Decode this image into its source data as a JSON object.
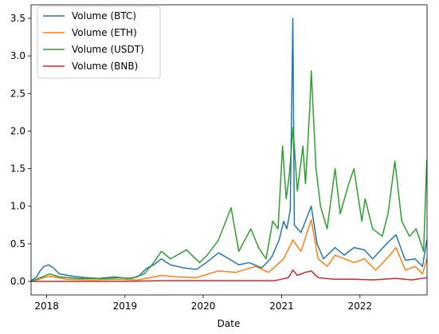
{
  "chart_data": {
    "type": "line",
    "title": "",
    "xlabel": "Date",
    "ylabel": "",
    "xlim": [
      "2017-10-20",
      "2022-11-10"
    ],
    "ylim": [
      -0.18,
      3.68
    ],
    "x_ticks": [
      "2018",
      "2019",
      "2020",
      "2021",
      "2022"
    ],
    "y_ticks": [
      "0.0",
      "0.5",
      "1.0",
      "1.5",
      "2.0",
      "2.5",
      "3.0",
      "3.5"
    ],
    "legend_position": "top-left",
    "grid": false,
    "series": [
      {
        "name": "Volume (BTC)",
        "color": "#1f77b4",
        "points": [
          [
            "2017-10-20",
            0.01
          ],
          [
            "2017-11-15",
            0.06
          ],
          [
            "2017-12-01",
            0.14
          ],
          [
            "2017-12-20",
            0.2
          ],
          [
            "2018-01-10",
            0.22
          ],
          [
            "2018-02-01",
            0.18
          ],
          [
            "2018-03-01",
            0.1
          ],
          [
            "2018-05-01",
            0.07
          ],
          [
            "2018-07-01",
            0.05
          ],
          [
            "2018-09-01",
            0.04
          ],
          [
            "2018-11-15",
            0.06
          ],
          [
            "2019-01-15",
            0.04
          ],
          [
            "2019-03-01",
            0.06
          ],
          [
            "2019-04-15",
            0.18
          ],
          [
            "2019-05-15",
            0.22
          ],
          [
            "2019-06-20",
            0.3
          ],
          [
            "2019-08-01",
            0.22
          ],
          [
            "2019-10-01",
            0.18
          ],
          [
            "2019-12-01",
            0.16
          ],
          [
            "2020-01-15",
            0.25
          ],
          [
            "2020-03-12",
            0.38
          ],
          [
            "2020-05-01",
            0.3
          ],
          [
            "2020-06-15",
            0.22
          ],
          [
            "2020-08-01",
            0.25
          ],
          [
            "2020-10-01",
            0.18
          ],
          [
            "2020-11-15",
            0.32
          ],
          [
            "2020-12-20",
            0.55
          ],
          [
            "2021-01-10",
            0.8
          ],
          [
            "2021-01-25",
            0.7
          ],
          [
            "2021-02-10",
            0.95
          ],
          [
            "2021-02-22",
            3.5
          ],
          [
            "2021-03-01",
            0.75
          ],
          [
            "2021-04-01",
            0.65
          ],
          [
            "2021-05-19",
            1.0
          ],
          [
            "2021-06-15",
            0.5
          ],
          [
            "2021-07-15",
            0.3
          ],
          [
            "2021-09-07",
            0.45
          ],
          [
            "2021-10-20",
            0.35
          ],
          [
            "2021-12-04",
            0.45
          ],
          [
            "2022-01-22",
            0.42
          ],
          [
            "2022-03-01",
            0.3
          ],
          [
            "2022-05-12",
            0.52
          ],
          [
            "2022-06-18",
            0.62
          ],
          [
            "2022-08-01",
            0.28
          ],
          [
            "2022-09-15",
            0.3
          ],
          [
            "2022-10-20",
            0.2
          ],
          [
            "2022-11-09",
            0.55
          ]
        ]
      },
      {
        "name": "Volume (ETH)",
        "color": "#ff7f0e",
        "points": [
          [
            "2017-10-20",
            0.0
          ],
          [
            "2017-12-20",
            0.05
          ],
          [
            "2018-01-15",
            0.07
          ],
          [
            "2018-04-01",
            0.03
          ],
          [
            "2018-08-01",
            0.02
          ],
          [
            "2018-11-15",
            0.03
          ],
          [
            "2019-03-01",
            0.02
          ],
          [
            "2019-06-20",
            0.08
          ],
          [
            "2019-09-01",
            0.06
          ],
          [
            "2019-12-01",
            0.05
          ],
          [
            "2020-03-12",
            0.14
          ],
          [
            "2020-06-01",
            0.12
          ],
          [
            "2020-09-01",
            0.2
          ],
          [
            "2020-11-01",
            0.12
          ],
          [
            "2021-01-10",
            0.3
          ],
          [
            "2021-02-22",
            0.55
          ],
          [
            "2021-04-01",
            0.4
          ],
          [
            "2021-05-19",
            0.82
          ],
          [
            "2021-06-20",
            0.3
          ],
          [
            "2021-08-01",
            0.2
          ],
          [
            "2021-09-07",
            0.35
          ],
          [
            "2021-12-04",
            0.25
          ],
          [
            "2022-01-22",
            0.3
          ],
          [
            "2022-03-15",
            0.15
          ],
          [
            "2022-05-12",
            0.32
          ],
          [
            "2022-06-18",
            0.45
          ],
          [
            "2022-08-01",
            0.15
          ],
          [
            "2022-09-15",
            0.2
          ],
          [
            "2022-10-20",
            0.1
          ],
          [
            "2022-11-09",
            0.3
          ]
        ]
      },
      {
        "name": "Volume (USDT)",
        "color": "#2ca02c",
        "points": [
          [
            "2017-10-20",
            0.0
          ],
          [
            "2017-12-20",
            0.07
          ],
          [
            "2018-01-15",
            0.1
          ],
          [
            "2018-03-01",
            0.06
          ],
          [
            "2018-06-01",
            0.04
          ],
          [
            "2018-10-01",
            0.04
          ],
          [
            "2018-12-01",
            0.05
          ],
          [
            "2019-02-01",
            0.04
          ],
          [
            "2019-04-01",
            0.1
          ],
          [
            "2019-05-15",
            0.25
          ],
          [
            "2019-06-20",
            0.4
          ],
          [
            "2019-08-01",
            0.3
          ],
          [
            "2019-10-15",
            0.42
          ],
          [
            "2019-12-15",
            0.25
          ],
          [
            "2020-01-20",
            0.35
          ],
          [
            "2020-03-12",
            0.55
          ],
          [
            "2020-05-10",
            0.98
          ],
          [
            "2020-06-15",
            0.4
          ],
          [
            "2020-08-10",
            0.7
          ],
          [
            "2020-09-15",
            0.45
          ],
          [
            "2020-10-20",
            0.3
          ],
          [
            "2020-11-20",
            0.8
          ],
          [
            "2020-12-15",
            0.7
          ],
          [
            "2021-01-05",
            1.8
          ],
          [
            "2021-01-22",
            1.1
          ],
          [
            "2021-02-05",
            1.4
          ],
          [
            "2021-02-23",
            2.05
          ],
          [
            "2021-03-15",
            1.2
          ],
          [
            "2021-04-10",
            1.8
          ],
          [
            "2021-04-22",
            1.3
          ],
          [
            "2021-05-12",
            2.3
          ],
          [
            "2021-05-19",
            2.8
          ],
          [
            "2021-06-10",
            1.5
          ],
          [
            "2021-07-01",
            1.0
          ],
          [
            "2021-08-01",
            0.7
          ],
          [
            "2021-09-07",
            1.5
          ],
          [
            "2021-10-01",
            0.9
          ],
          [
            "2021-11-10",
            1.3
          ],
          [
            "2021-12-04",
            1.5
          ],
          [
            "2022-01-10",
            0.8
          ],
          [
            "2022-01-25",
            1.1
          ],
          [
            "2022-03-01",
            0.7
          ],
          [
            "2022-04-15",
            0.6
          ],
          [
            "2022-05-12",
            0.9
          ],
          [
            "2022-06-13",
            1.6
          ],
          [
            "2022-07-15",
            0.8
          ],
          [
            "2022-08-20",
            0.6
          ],
          [
            "2022-09-20",
            0.7
          ],
          [
            "2022-10-25",
            0.4
          ],
          [
            "2022-11-09",
            1.62
          ]
        ]
      },
      {
        "name": "Volume (BNB)",
        "color": "#d62728",
        "points": [
          [
            "2017-10-20",
            0.0
          ],
          [
            "2018-06-01",
            0.0
          ],
          [
            "2019-01-01",
            0.0
          ],
          [
            "2019-06-20",
            0.01
          ],
          [
            "2020-03-12",
            0.01
          ],
          [
            "2020-12-01",
            0.01
          ],
          [
            "2021-02-01",
            0.05
          ],
          [
            "2021-02-22",
            0.15
          ],
          [
            "2021-03-15",
            0.08
          ],
          [
            "2021-04-20",
            0.12
          ],
          [
            "2021-05-19",
            0.14
          ],
          [
            "2021-06-20",
            0.05
          ],
          [
            "2021-09-01",
            0.03
          ],
          [
            "2021-12-01",
            0.03
          ],
          [
            "2022-03-01",
            0.02
          ],
          [
            "2022-06-18",
            0.04
          ],
          [
            "2022-09-01",
            0.02
          ],
          [
            "2022-11-09",
            0.05
          ]
        ]
      }
    ]
  }
}
